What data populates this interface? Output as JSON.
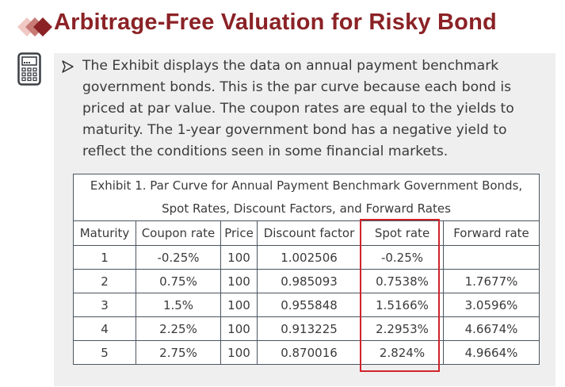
{
  "title": "Arbitrage-Free Valuation for Risky Bond",
  "colors": {
    "title": "#8b2226",
    "highlight": "#d0242b",
    "panel": "#efefef",
    "text": "#3a3a3a"
  },
  "icons": [
    "diamond-logo-icon",
    "calculator-icon",
    "arrow-bullet-icon"
  ],
  "paragraph": "The Exhibit displays the data on annual payment benchmark government bonds. This is the par curve because each bond is priced at par value. The coupon rates are equal to the yields to maturity. The 1-year government bond has a negative yield to reflect the conditions seen in some financial markets.",
  "table": {
    "caption": "Exhibit 1. Par Curve for Annual Payment Benchmark Government Bonds, Spot Rates, Discount Factors, and Forward Rates",
    "headers": [
      "Maturity",
      "Coupon rate",
      "Price",
      "Discount factor",
      "Spot rate",
      "Forward rate"
    ],
    "rows": [
      [
        "1",
        "-0.25%",
        "100",
        "1.002506",
        "-0.25%",
        ""
      ],
      [
        "2",
        "0.75%",
        "100",
        "0.985093",
        "0.7538%",
        "1.7677%"
      ],
      [
        "3",
        "1.5%",
        "100",
        "0.955848",
        "1.5166%",
        "3.0596%"
      ],
      [
        "4",
        "2.25%",
        "100",
        "0.913225",
        "2.2953%",
        "4.6674%"
      ],
      [
        "5",
        "2.75%",
        "100",
        "0.870016",
        "2.824%",
        "4.9664%"
      ]
    ],
    "highlighted_column": "Spot rate"
  }
}
